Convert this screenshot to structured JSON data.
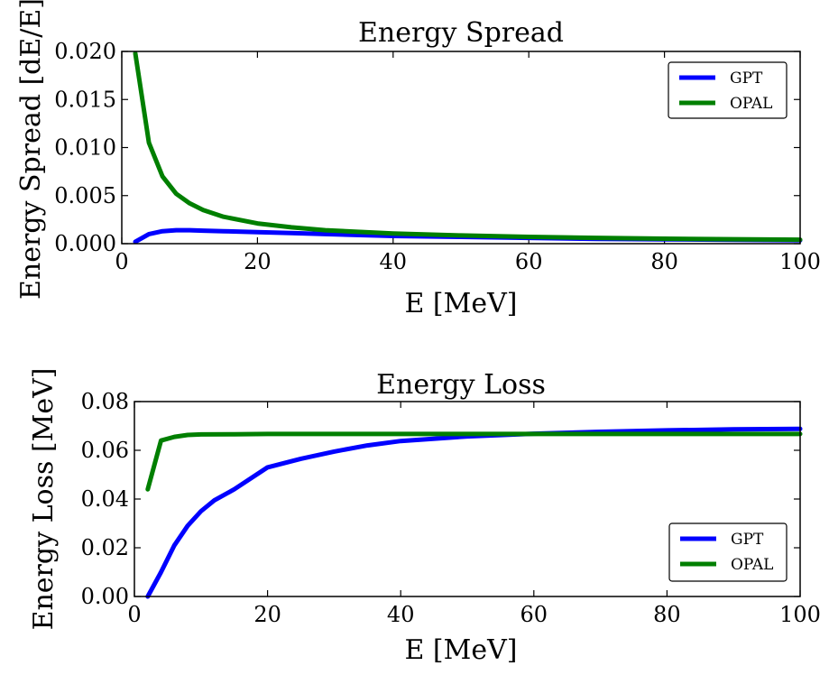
{
  "chart_data": [
    {
      "type": "line",
      "title": "Energy Spread",
      "xlabel": "E [MeV]",
      "ylabel": "Energy Spread [dE/E]",
      "xlim": [
        0,
        100
      ],
      "ylim": [
        0,
        0.02
      ],
      "xticks": [
        "0",
        "20",
        "40",
        "60",
        "80",
        "100"
      ],
      "yticks": [
        "0.000",
        "0.005",
        "0.010",
        "0.015",
        "0.020"
      ],
      "legend": "top-right",
      "grid": false,
      "series": [
        {
          "name": "GPT",
          "color": "#0000ff",
          "x": [
            2,
            4,
            6,
            8,
            10,
            12,
            15,
            20,
            25,
            30,
            40,
            50,
            60,
            70,
            80,
            90,
            100
          ],
          "y": [
            0.0002,
            0.001,
            0.0013,
            0.0014,
            0.0014,
            0.00135,
            0.0013,
            0.0012,
            0.0011,
            0.001,
            0.0008,
            0.0007,
            0.0006,
            0.0005,
            0.00045,
            0.0004,
            0.00035
          ]
        },
        {
          "name": "OPAL",
          "color": "#007f00",
          "x": [
            2,
            4,
            6,
            8,
            10,
            12,
            15,
            20,
            25,
            30,
            40,
            50,
            60,
            70,
            80,
            90,
            100
          ],
          "y": [
            0.0198,
            0.0105,
            0.007,
            0.0052,
            0.0042,
            0.0035,
            0.0028,
            0.0021,
            0.0017,
            0.0014,
            0.00105,
            0.00085,
            0.0007,
            0.0006,
            0.00052,
            0.00046,
            0.00041
          ]
        }
      ]
    },
    {
      "type": "line",
      "title": "Energy Loss",
      "xlabel": "E [MeV]",
      "ylabel": "Energy Loss [MeV]",
      "xlim": [
        0,
        100
      ],
      "ylim": [
        0,
        0.08
      ],
      "xticks": [
        "0",
        "20",
        "40",
        "60",
        "80",
        "100"
      ],
      "yticks": [
        "0.00",
        "0.02",
        "0.04",
        "0.06",
        "0.08"
      ],
      "legend": "bottom-right",
      "grid": false,
      "series": [
        {
          "name": "GPT",
          "color": "#0000ff",
          "x": [
            2,
            4,
            6,
            8,
            10,
            12,
            15,
            20,
            25,
            30,
            35,
            40,
            50,
            60,
            70,
            80,
            90,
            100
          ],
          "y": [
            0.0,
            0.01,
            0.021,
            0.029,
            0.035,
            0.0395,
            0.044,
            0.053,
            0.0565,
            0.0595,
            0.062,
            0.0638,
            0.0657,
            0.0668,
            0.0676,
            0.0682,
            0.0686,
            0.0688
          ]
        },
        {
          "name": "OPAL",
          "color": "#007f00",
          "x": [
            2,
            4,
            6,
            8,
            10,
            15,
            20,
            30,
            40,
            50,
            60,
            70,
            80,
            90,
            100
          ],
          "y": [
            0.044,
            0.064,
            0.0655,
            0.0663,
            0.0665,
            0.0666,
            0.0667,
            0.0667,
            0.0667,
            0.0667,
            0.0667,
            0.0667,
            0.0667,
            0.0667,
            0.0667
          ]
        }
      ]
    }
  ]
}
